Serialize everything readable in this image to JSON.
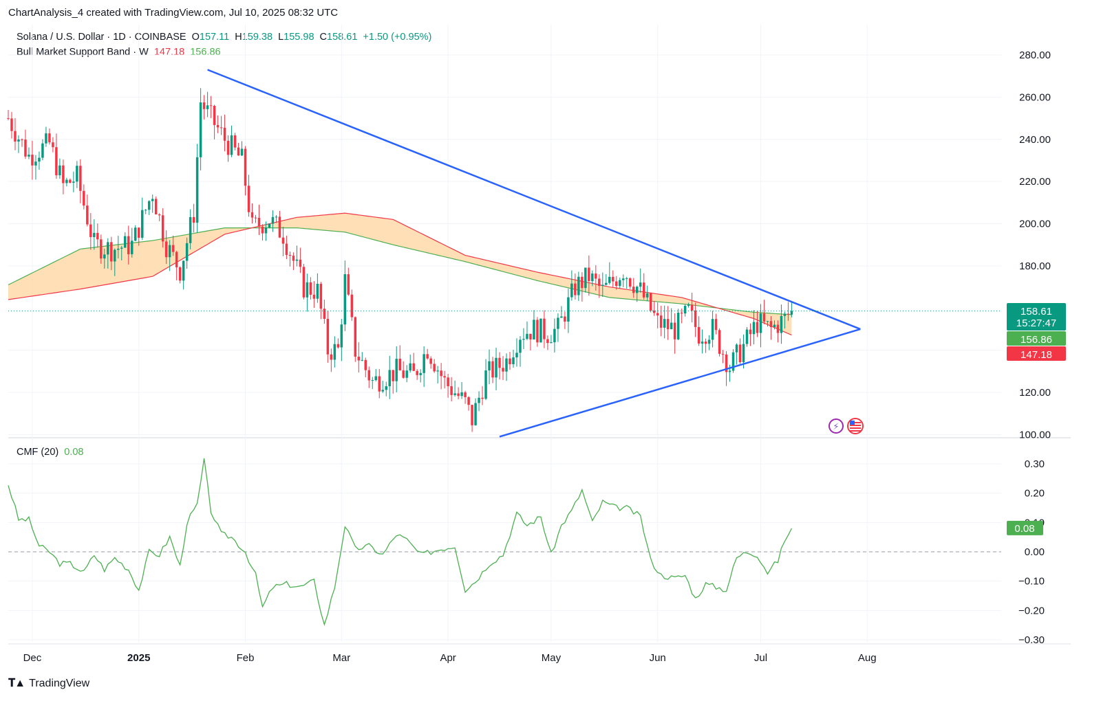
{
  "header": {
    "title": "ChartAnalysis_4 created with TradingView.com, Jul 10, 2025 08:32 UTC"
  },
  "legend": {
    "symbol": "Solana / U.S. Dollar · 1D · COINBASE",
    "o_label": "O",
    "o": "157.11",
    "h_label": "H",
    "h": "159.38",
    "l_label": "L",
    "l": "155.98",
    "c_label": "C",
    "c": "158.61",
    "change": "+1.50 (+0.95%)",
    "band_label": "Bull Market Support Band · W",
    "band_lower": "147.18",
    "band_upper": "156.86",
    "cmf_label": "CMF (20)",
    "cmf_value": "0.08"
  },
  "price_tags": {
    "last": "158.61",
    "countdown": "15:27:47",
    "band_upper": "156.86",
    "band_lower": "147.18",
    "cmf": "0.08"
  },
  "colors": {
    "up": "#089981",
    "down": "#f23645",
    "trendline": "#2962ff",
    "band_fill": "#ffd9a8",
    "band_upper_line": "#4caf50",
    "band_lower_line": "#f23645",
    "cmf_line": "#4caf50",
    "last_price": "#089981"
  },
  "brand": {
    "name": "TradingView"
  },
  "chart_data": [
    {
      "type": "candlestick",
      "title": "Solana / U.S. Dollar · 1D · COINBASE",
      "y_ticks": [
        "280.00",
        "260.00",
        "240.00",
        "220.00",
        "200.00",
        "180.00",
        "120.00",
        "100.00"
      ],
      "ylim": [
        100,
        290
      ],
      "x_ticks": [
        "Dec",
        "2025",
        "Feb",
        "Mar",
        "Apr",
        "May",
        "Jun",
        "Jul",
        "Aug"
      ],
      "x_tick_dates": [
        "2024-12-01",
        "2025-01-01",
        "2025-02-01",
        "2025-03-01",
        "2025-04-01",
        "2025-05-01",
        "2025-06-01",
        "2025-07-01",
        "2025-08-01"
      ],
      "xlim": [
        "2024-11-24",
        "2025-09-09"
      ],
      "last_close": 158.61,
      "close_anchors": [
        [
          "2024-11-24",
          250
        ],
        [
          "2024-11-30",
          232
        ],
        [
          "2024-12-06",
          238
        ],
        [
          "2024-12-10",
          218
        ],
        [
          "2024-12-14",
          222
        ],
        [
          "2024-12-19",
          190
        ],
        [
          "2024-12-24",
          188
        ],
        [
          "2024-12-30",
          190
        ],
        [
          "2025-01-05",
          215
        ],
        [
          "2025-01-09",
          190
        ],
        [
          "2025-01-13",
          178
        ],
        [
          "2025-01-17",
          205
        ],
        [
          "2025-01-19",
          258
        ],
        [
          "2025-01-22",
          250
        ],
        [
          "2025-01-26",
          240
        ],
        [
          "2025-01-31",
          230
        ],
        [
          "2025-02-03",
          198
        ],
        [
          "2025-02-08",
          202
        ],
        [
          "2025-02-12",
          195
        ],
        [
          "2025-02-18",
          170
        ],
        [
          "2025-02-22",
          168
        ],
        [
          "2025-02-25",
          140
        ],
        [
          "2025-02-28",
          140
        ],
        [
          "2025-03-02",
          173
        ],
        [
          "2025-03-05",
          140
        ],
        [
          "2025-03-10",
          125
        ],
        [
          "2025-03-17",
          130
        ],
        [
          "2025-03-22",
          128
        ],
        [
          "2025-03-26",
          141
        ],
        [
          "2025-03-31",
          125
        ],
        [
          "2025-04-06",
          115
        ],
        [
          "2025-04-08",
          107
        ],
        [
          "2025-04-12",
          128
        ],
        [
          "2025-04-18",
          135
        ],
        [
          "2025-04-22",
          148
        ],
        [
          "2025-04-26",
          150
        ],
        [
          "2025-04-30",
          148
        ],
        [
          "2025-05-03",
          150
        ],
        [
          "2025-05-08",
          170
        ],
        [
          "2025-05-12",
          175
        ],
        [
          "2025-05-16",
          168
        ],
        [
          "2025-05-22",
          178
        ],
        [
          "2025-05-27",
          168
        ],
        [
          "2025-06-01",
          153
        ],
        [
          "2025-06-06",
          150
        ],
        [
          "2025-06-10",
          158
        ],
        [
          "2025-06-13",
          148
        ],
        [
          "2025-06-17",
          150
        ],
        [
          "2025-06-22",
          132
        ],
        [
          "2025-06-26",
          142
        ],
        [
          "2025-06-30",
          153
        ],
        [
          "2025-07-04",
          150
        ],
        [
          "2025-07-08",
          155
        ],
        [
          "2025-07-10",
          158.61
        ]
      ],
      "band_upper": [
        [
          "2024-11-24",
          171
        ],
        [
          "2024-12-15",
          188
        ],
        [
          "2025-01-05",
          192
        ],
        [
          "2025-01-26",
          198
        ],
        [
          "2025-02-16",
          198
        ],
        [
          "2025-03-02",
          196
        ],
        [
          "2025-03-16",
          190
        ],
        [
          "2025-04-06",
          182
        ],
        [
          "2025-04-27",
          173
        ],
        [
          "2025-05-18",
          165
        ],
        [
          "2025-06-08",
          162
        ],
        [
          "2025-06-29",
          158
        ],
        [
          "2025-07-10",
          156.86
        ]
      ],
      "band_lower": [
        [
          "2024-11-24",
          164
        ],
        [
          "2024-12-15",
          169
        ],
        [
          "2025-01-05",
          175
        ],
        [
          "2025-01-26",
          195
        ],
        [
          "2025-02-16",
          203
        ],
        [
          "2025-03-02",
          205
        ],
        [
          "2025-03-16",
          202
        ],
        [
          "2025-04-06",
          185
        ],
        [
          "2025-04-27",
          177
        ],
        [
          "2025-05-18",
          170
        ],
        [
          "2025-06-08",
          165
        ],
        [
          "2025-06-29",
          155
        ],
        [
          "2025-07-10",
          147.18
        ]
      ],
      "trendlines": [
        {
          "name": "",
          "from": [
            "2025-01-21",
            273
          ],
          "to": [
            "2025-07-30",
            150
          ]
        },
        {
          "name": "",
          "from": [
            "2025-04-16",
            99
          ],
          "to": [
            "2025-07-30",
            150
          ]
        }
      ],
      "grid": true
    },
    {
      "type": "line",
      "title": "CMF (20)",
      "y_ticks": [
        "0.30",
        "0.20",
        "0.10",
        "0.00",
        "-0.10",
        "-0.20",
        "-0.30"
      ],
      "ylim": [
        -0.3,
        0.3
      ],
      "last_value": 0.08,
      "values": [
        [
          "2024-11-24",
          0.23
        ],
        [
          "2024-11-27",
          0.11
        ],
        [
          "2024-11-30",
          0.11
        ],
        [
          "2024-12-03",
          0.02
        ],
        [
          "2024-12-06",
          0.0
        ],
        [
          "2024-12-09",
          -0.04
        ],
        [
          "2024-12-12",
          -0.04
        ],
        [
          "2024-12-16",
          -0.07
        ],
        [
          "2024-12-19",
          -0.01
        ],
        [
          "2024-12-22",
          -0.06
        ],
        [
          "2024-12-25",
          -0.02
        ],
        [
          "2024-12-29",
          -0.06
        ],
        [
          "2025-01-01",
          -0.13
        ],
        [
          "2025-01-04",
          0.0
        ],
        [
          "2025-01-07",
          -0.01
        ],
        [
          "2025-01-10",
          0.05
        ],
        [
          "2025-01-13",
          -0.05
        ],
        [
          "2025-01-15",
          0.1
        ],
        [
          "2025-01-18",
          0.16
        ],
        [
          "2025-01-20",
          0.31
        ],
        [
          "2025-01-22",
          0.14
        ],
        [
          "2025-01-25",
          0.06
        ],
        [
          "2025-01-28",
          0.05
        ],
        [
          "2025-02-01",
          0.0
        ],
        [
          "2025-02-04",
          -0.08
        ],
        [
          "2025-02-06",
          -0.19
        ],
        [
          "2025-02-09",
          -0.12
        ],
        [
          "2025-02-13",
          -0.11
        ],
        [
          "2025-02-17",
          -0.12
        ],
        [
          "2025-02-21",
          -0.1
        ],
        [
          "2025-02-24",
          -0.25
        ],
        [
          "2025-02-27",
          -0.12
        ],
        [
          "2025-03-02",
          0.09
        ],
        [
          "2025-03-05",
          0.01
        ],
        [
          "2025-03-09",
          0.02
        ],
        [
          "2025-03-13",
          -0.01
        ],
        [
          "2025-03-17",
          0.06
        ],
        [
          "2025-03-20",
          0.04
        ],
        [
          "2025-03-24",
          -0.01
        ],
        [
          "2025-03-27",
          0.0
        ],
        [
          "2025-03-30",
          0.01
        ],
        [
          "2025-04-03",
          0.02
        ],
        [
          "2025-04-06",
          -0.13
        ],
        [
          "2025-04-09",
          -0.1
        ],
        [
          "2025-04-13",
          -0.04
        ],
        [
          "2025-04-17",
          -0.01
        ],
        [
          "2025-04-21",
          0.13
        ],
        [
          "2025-04-24",
          0.09
        ],
        [
          "2025-04-28",
          0.12
        ],
        [
          "2025-05-01",
          -0.01
        ],
        [
          "2025-05-04",
          0.09
        ],
        [
          "2025-05-07",
          0.14
        ],
        [
          "2025-05-10",
          0.21
        ],
        [
          "2025-05-13",
          0.1
        ],
        [
          "2025-05-16",
          0.17
        ],
        [
          "2025-05-20",
          0.15
        ],
        [
          "2025-05-23",
          0.15
        ],
        [
          "2025-05-27",
          0.12
        ],
        [
          "2025-05-30",
          -0.03
        ],
        [
          "2025-06-02",
          -0.08
        ],
        [
          "2025-06-06",
          -0.09
        ],
        [
          "2025-06-09",
          -0.08
        ],
        [
          "2025-06-12",
          -0.16
        ],
        [
          "2025-06-15",
          -0.11
        ],
        [
          "2025-06-18",
          -0.12
        ],
        [
          "2025-06-21",
          -0.13
        ],
        [
          "2025-06-24",
          -0.02
        ],
        [
          "2025-06-27",
          0.0
        ],
        [
          "2025-06-30",
          -0.01
        ],
        [
          "2025-07-03",
          -0.07
        ],
        [
          "2025-07-06",
          -0.03
        ],
        [
          "2025-07-08",
          0.04
        ],
        [
          "2025-07-10",
          0.08
        ]
      ],
      "zero_line": true
    }
  ]
}
